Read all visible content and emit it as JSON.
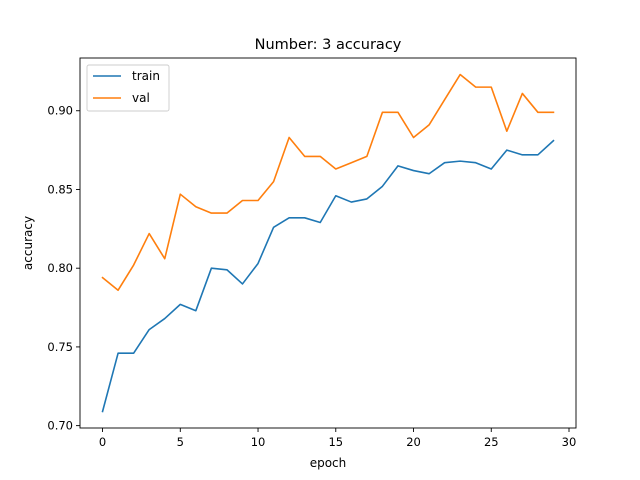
{
  "chart_data": {
    "type": "line",
    "title": "Number: 3 accuracy",
    "xlabel": "epoch",
    "ylabel": "accuracy",
    "xlim": [
      -1.45,
      30.45
    ],
    "ylim": [
      0.6985,
      0.9335
    ],
    "xticks": [
      0,
      5,
      10,
      15,
      20,
      25,
      30
    ],
    "yticks": [
      0.7,
      0.75,
      0.8,
      0.85,
      0.9
    ],
    "ytick_labels": [
      "0.70",
      "0.75",
      "0.80",
      "0.85",
      "0.90"
    ],
    "grid": false,
    "legend_position": "upper left",
    "x": [
      0,
      1,
      2,
      3,
      4,
      5,
      6,
      7,
      8,
      9,
      10,
      11,
      12,
      13,
      14,
      15,
      16,
      17,
      18,
      19,
      20,
      21,
      22,
      23,
      24,
      25,
      26,
      27,
      28,
      29
    ],
    "series": [
      {
        "name": "train",
        "color": "#1f77b4",
        "values": [
          0.709,
          0.746,
          0.746,
          0.761,
          0.768,
          0.777,
          0.773,
          0.8,
          0.799,
          0.79,
          0.803,
          0.826,
          0.832,
          0.832,
          0.829,
          0.846,
          0.842,
          0.844,
          0.852,
          0.865,
          0.862,
          0.86,
          0.867,
          0.868,
          0.867,
          0.863,
          0.875,
          0.872,
          0.872,
          0.881
        ]
      },
      {
        "name": "val",
        "color": "#ff7f0e",
        "values": [
          0.794,
          0.786,
          0.802,
          0.822,
          0.806,
          0.847,
          0.839,
          0.835,
          0.835,
          0.843,
          0.843,
          0.855,
          0.883,
          0.871,
          0.871,
          0.863,
          0.867,
          0.871,
          0.899,
          0.899,
          0.883,
          0.891,
          0.907,
          0.923,
          0.915,
          0.915,
          0.887,
          0.911,
          0.899,
          0.899
        ]
      }
    ]
  }
}
